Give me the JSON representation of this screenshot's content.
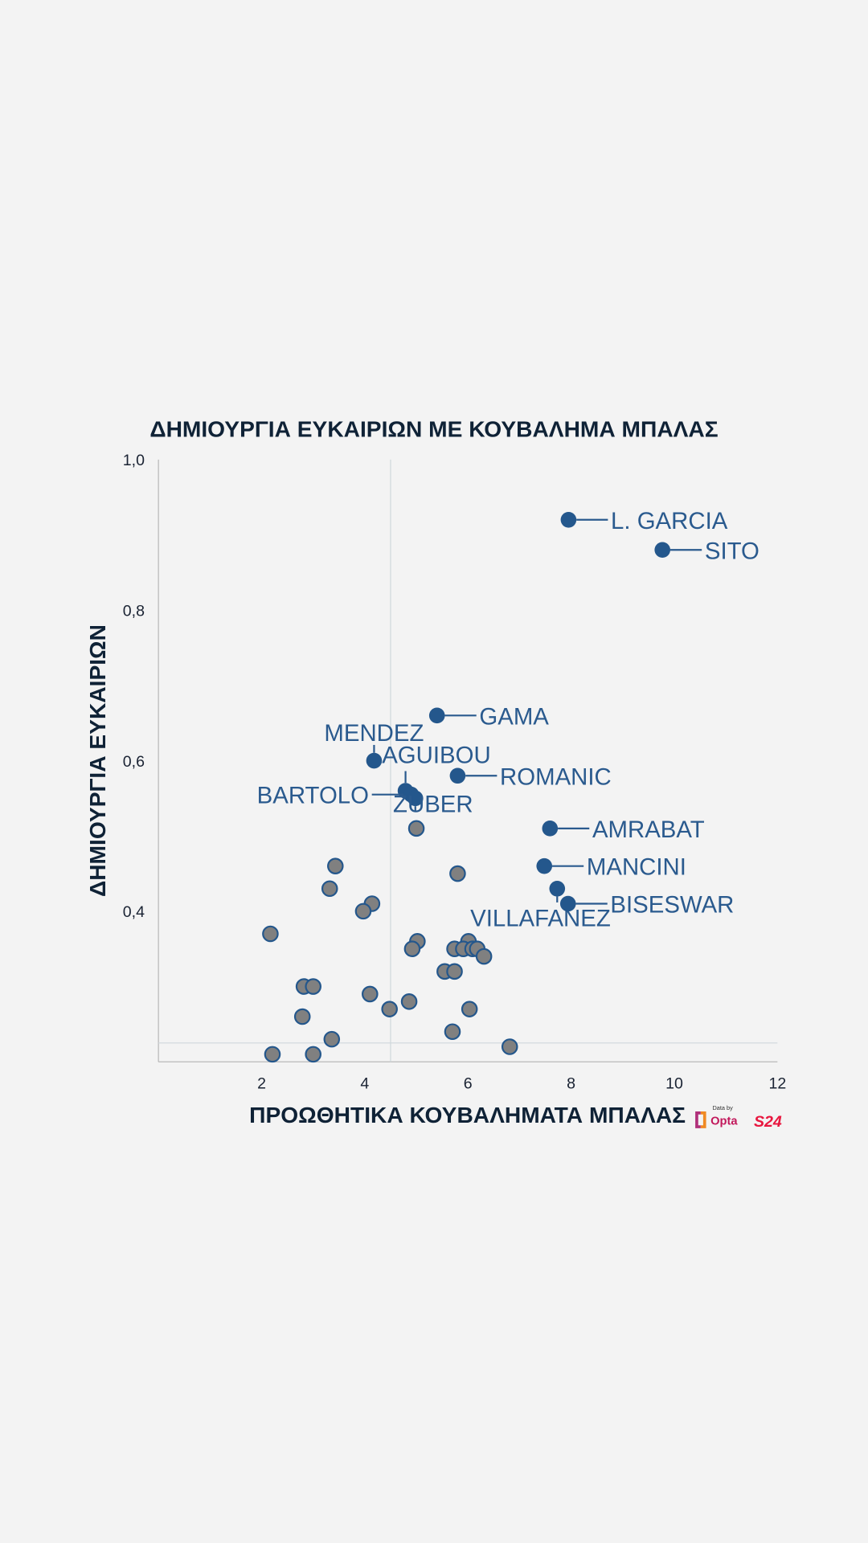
{
  "chart_data": {
    "type": "scatter",
    "title": "ΔΗΜΙΟΥΡΓΙΑ ΕΥΚΑΙΡΙΩΝ ΜΕ ΚΟΥΒΑΛΗΜΑ ΜΠΑΛΑΣ",
    "xlabel": "ΠΡΟΩΘΗΤΙΚΑ ΚΟΥΒΑΛΗΜΑΤΑ ΜΠΑΛΑΣ",
    "ylabel": "ΔΗΜΙΟΥΡΓΙΑ ΕΥΚΑΙΡΙΩΝ",
    "xlim": [
      0,
      12
    ],
    "ylim": [
      0.2,
      1.0
    ],
    "xticks": [
      "2",
      "4",
      "6",
      "8",
      "10",
      "12"
    ],
    "yticks": [
      "0,4",
      "0,6",
      "0,8",
      "1,0"
    ],
    "reference_lines": {
      "x": 4.5,
      "y": 0.225
    },
    "colors": {
      "highlight": "#24578c",
      "other": "#808080",
      "label": "#2a5a8e"
    },
    "highlighted": [
      {
        "name": "L. GARCIA",
        "x": 7.95,
        "y": 0.92
      },
      {
        "name": "SITO",
        "x": 9.77,
        "y": 0.88
      },
      {
        "name": "GAMA",
        "x": 5.4,
        "y": 0.66
      },
      {
        "name": "MENDEZ",
        "x": 4.18,
        "y": 0.6
      },
      {
        "name": "AGUIBOU",
        "x": 4.79,
        "y": 0.56
      },
      {
        "name": "BARTOLO",
        "x": 4.9,
        "y": 0.555
      },
      {
        "name": "ZUBER",
        "x": 4.98,
        "y": 0.55
      },
      {
        "name": "ROMANIC",
        "x": 5.8,
        "y": 0.58
      },
      {
        "name": "AMRABAT",
        "x": 7.59,
        "y": 0.51
      },
      {
        "name": "MANCINI",
        "x": 7.48,
        "y": 0.46
      },
      {
        "name": "VILLAFANEZ",
        "x": 7.73,
        "y": 0.43
      },
      {
        "name": "BISESWAR",
        "x": 7.94,
        "y": 0.41
      }
    ],
    "others": [
      [
        5.0,
        0.51
      ],
      [
        3.43,
        0.46
      ],
      [
        5.8,
        0.45
      ],
      [
        3.32,
        0.43
      ],
      [
        4.14,
        0.41
      ],
      [
        3.97,
        0.4
      ],
      [
        2.17,
        0.37
      ],
      [
        5.02,
        0.36
      ],
      [
        4.92,
        0.35
      ],
      [
        6.01,
        0.36
      ],
      [
        5.74,
        0.35
      ],
      [
        5.91,
        0.35
      ],
      [
        6.09,
        0.35
      ],
      [
        6.18,
        0.35
      ],
      [
        6.31,
        0.34
      ],
      [
        5.55,
        0.32
      ],
      [
        5.74,
        0.32
      ],
      [
        2.82,
        0.3
      ],
      [
        3.0,
        0.3
      ],
      [
        4.1,
        0.29
      ],
      [
        4.86,
        0.28
      ],
      [
        4.48,
        0.27
      ],
      [
        6.03,
        0.27
      ],
      [
        2.79,
        0.26
      ],
      [
        5.7,
        0.24
      ],
      [
        3.36,
        0.23
      ],
      [
        6.81,
        0.22
      ],
      [
        2.21,
        0.21
      ],
      [
        3.0,
        0.21
      ]
    ]
  },
  "footer": {
    "data_by": "Data by",
    "opta": "Opta",
    "brand": "S24"
  }
}
